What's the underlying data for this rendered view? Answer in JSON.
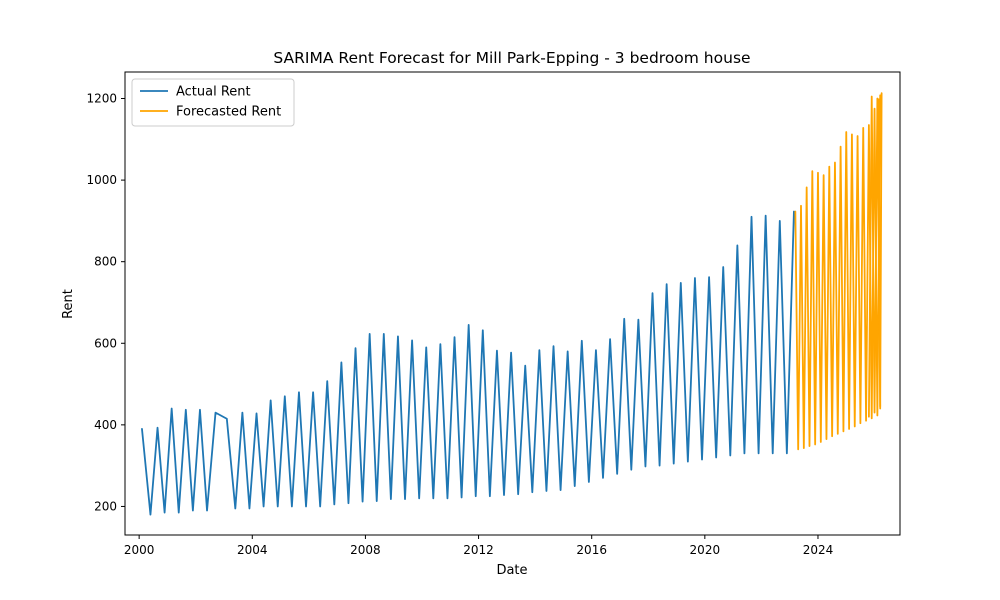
{
  "chart_data": {
    "type": "line",
    "title": "SARIMA Rent Forecast for Mill Park-Epping - 3 bedroom house",
    "xlabel": "Date",
    "ylabel": "Rent",
    "x_unit": "year",
    "xlim": [
      1999.5,
      2026.9
    ],
    "ylim": [
      130,
      1265
    ],
    "xticks": [
      2000,
      2004,
      2008,
      2012,
      2016,
      2020,
      2024
    ],
    "yticks": [
      200,
      400,
      600,
      800,
      1000,
      1200
    ],
    "grid": false,
    "legend_position": "upper-left",
    "series": [
      {
        "name": "Actual Rent",
        "color": "#1f77b4",
        "x": [
          2000.1,
          2000.4,
          2000.65,
          2000.9,
          2001.15,
          2001.4,
          2001.65,
          2001.9,
          2002.15,
          2002.4,
          2002.7,
          2003.1,
          2003.4,
          2003.65,
          2003.9,
          2004.15,
          2004.4,
          2004.65,
          2004.9,
          2005.15,
          2005.4,
          2005.65,
          2005.9,
          2006.15,
          2006.4,
          2006.65,
          2006.9,
          2007.15,
          2007.4,
          2007.65,
          2007.9,
          2008.15,
          2008.4,
          2008.65,
          2008.9,
          2009.15,
          2009.4,
          2009.65,
          2009.9,
          2010.15,
          2010.4,
          2010.65,
          2010.9,
          2011.15,
          2011.4,
          2011.65,
          2011.9,
          2012.15,
          2012.4,
          2012.65,
          2012.9,
          2013.15,
          2013.4,
          2013.65,
          2013.9,
          2014.15,
          2014.4,
          2014.65,
          2014.9,
          2015.15,
          2015.4,
          2015.65,
          2015.9,
          2016.15,
          2016.4,
          2016.65,
          2016.9,
          2017.15,
          2017.4,
          2017.65,
          2017.9,
          2018.15,
          2018.4,
          2018.65,
          2018.9,
          2019.15,
          2019.4,
          2019.65,
          2019.9,
          2020.15,
          2020.4,
          2020.65,
          2020.9,
          2021.15,
          2021.4,
          2021.65,
          2021.9,
          2022.15,
          2022.4,
          2022.65,
          2022.9,
          2023.15
        ],
        "y": [
          390,
          180,
          393,
          185,
          440,
          185,
          437,
          190,
          437,
          190,
          430,
          415,
          195,
          430,
          195,
          428,
          200,
          460,
          200,
          470,
          200,
          480,
          200,
          480,
          200,
          507,
          205,
          553,
          208,
          588,
          212,
          623,
          213,
          623,
          218,
          617,
          218,
          607,
          220,
          590,
          220,
          598,
          220,
          615,
          222,
          645,
          225,
          632,
          225,
          582,
          228,
          577,
          230,
          545,
          235,
          583,
          238,
          593,
          240,
          580,
          250,
          606,
          260,
          583,
          270,
          610,
          280,
          660,
          290,
          658,
          298,
          723,
          300,
          745,
          305,
          748,
          310,
          760,
          315,
          762,
          320,
          787,
          325,
          840,
          330,
          910,
          330,
          913,
          330,
          900,
          330,
          923
        ]
      },
      {
        "name": "Forecasted Rent",
        "color": "#ffa500",
        "x": [
          2023.2,
          2023.3,
          2023.4,
          2023.5,
          2023.6,
          2023.7,
          2023.8,
          2023.9,
          2024.0,
          2024.1,
          2024.2,
          2024.3,
          2024.4,
          2024.5,
          2024.6,
          2024.7,
          2024.8,
          2024.9,
          2025.0,
          2025.1,
          2025.2,
          2025.3,
          2025.4,
          2025.5,
          2025.6,
          2025.7,
          2025.8,
          2025.9,
          2026.0,
          2026.1,
          2026.2
        ],
        "y": [
          923,
          340,
          937,
          343,
          982,
          348,
          1022,
          352,
          1018,
          358,
          1012,
          365,
          1033,
          372,
          1043,
          378,
          1082,
          384,
          1118,
          390,
          1112,
          396,
          1108,
          404,
          1128,
          410,
          1135,
          416,
          1175,
          423,
          1208
        ]
      },
      {
        "name": "",
        "legend": false,
        "color": "#ffa500",
        "x": [
          2025.8,
          2025.9,
          2026.0,
          2026.1,
          2026.2
        ],
        "y": [
          420,
          1205,
          430,
          1200,
          440
        ]
      },
      {
        "name": "",
        "legend": false,
        "color": "#ffa500",
        "x": [
          2026.15,
          2026.2,
          2026.25
        ],
        "y": [
          1198,
          445,
          1213
        ]
      }
    ]
  }
}
